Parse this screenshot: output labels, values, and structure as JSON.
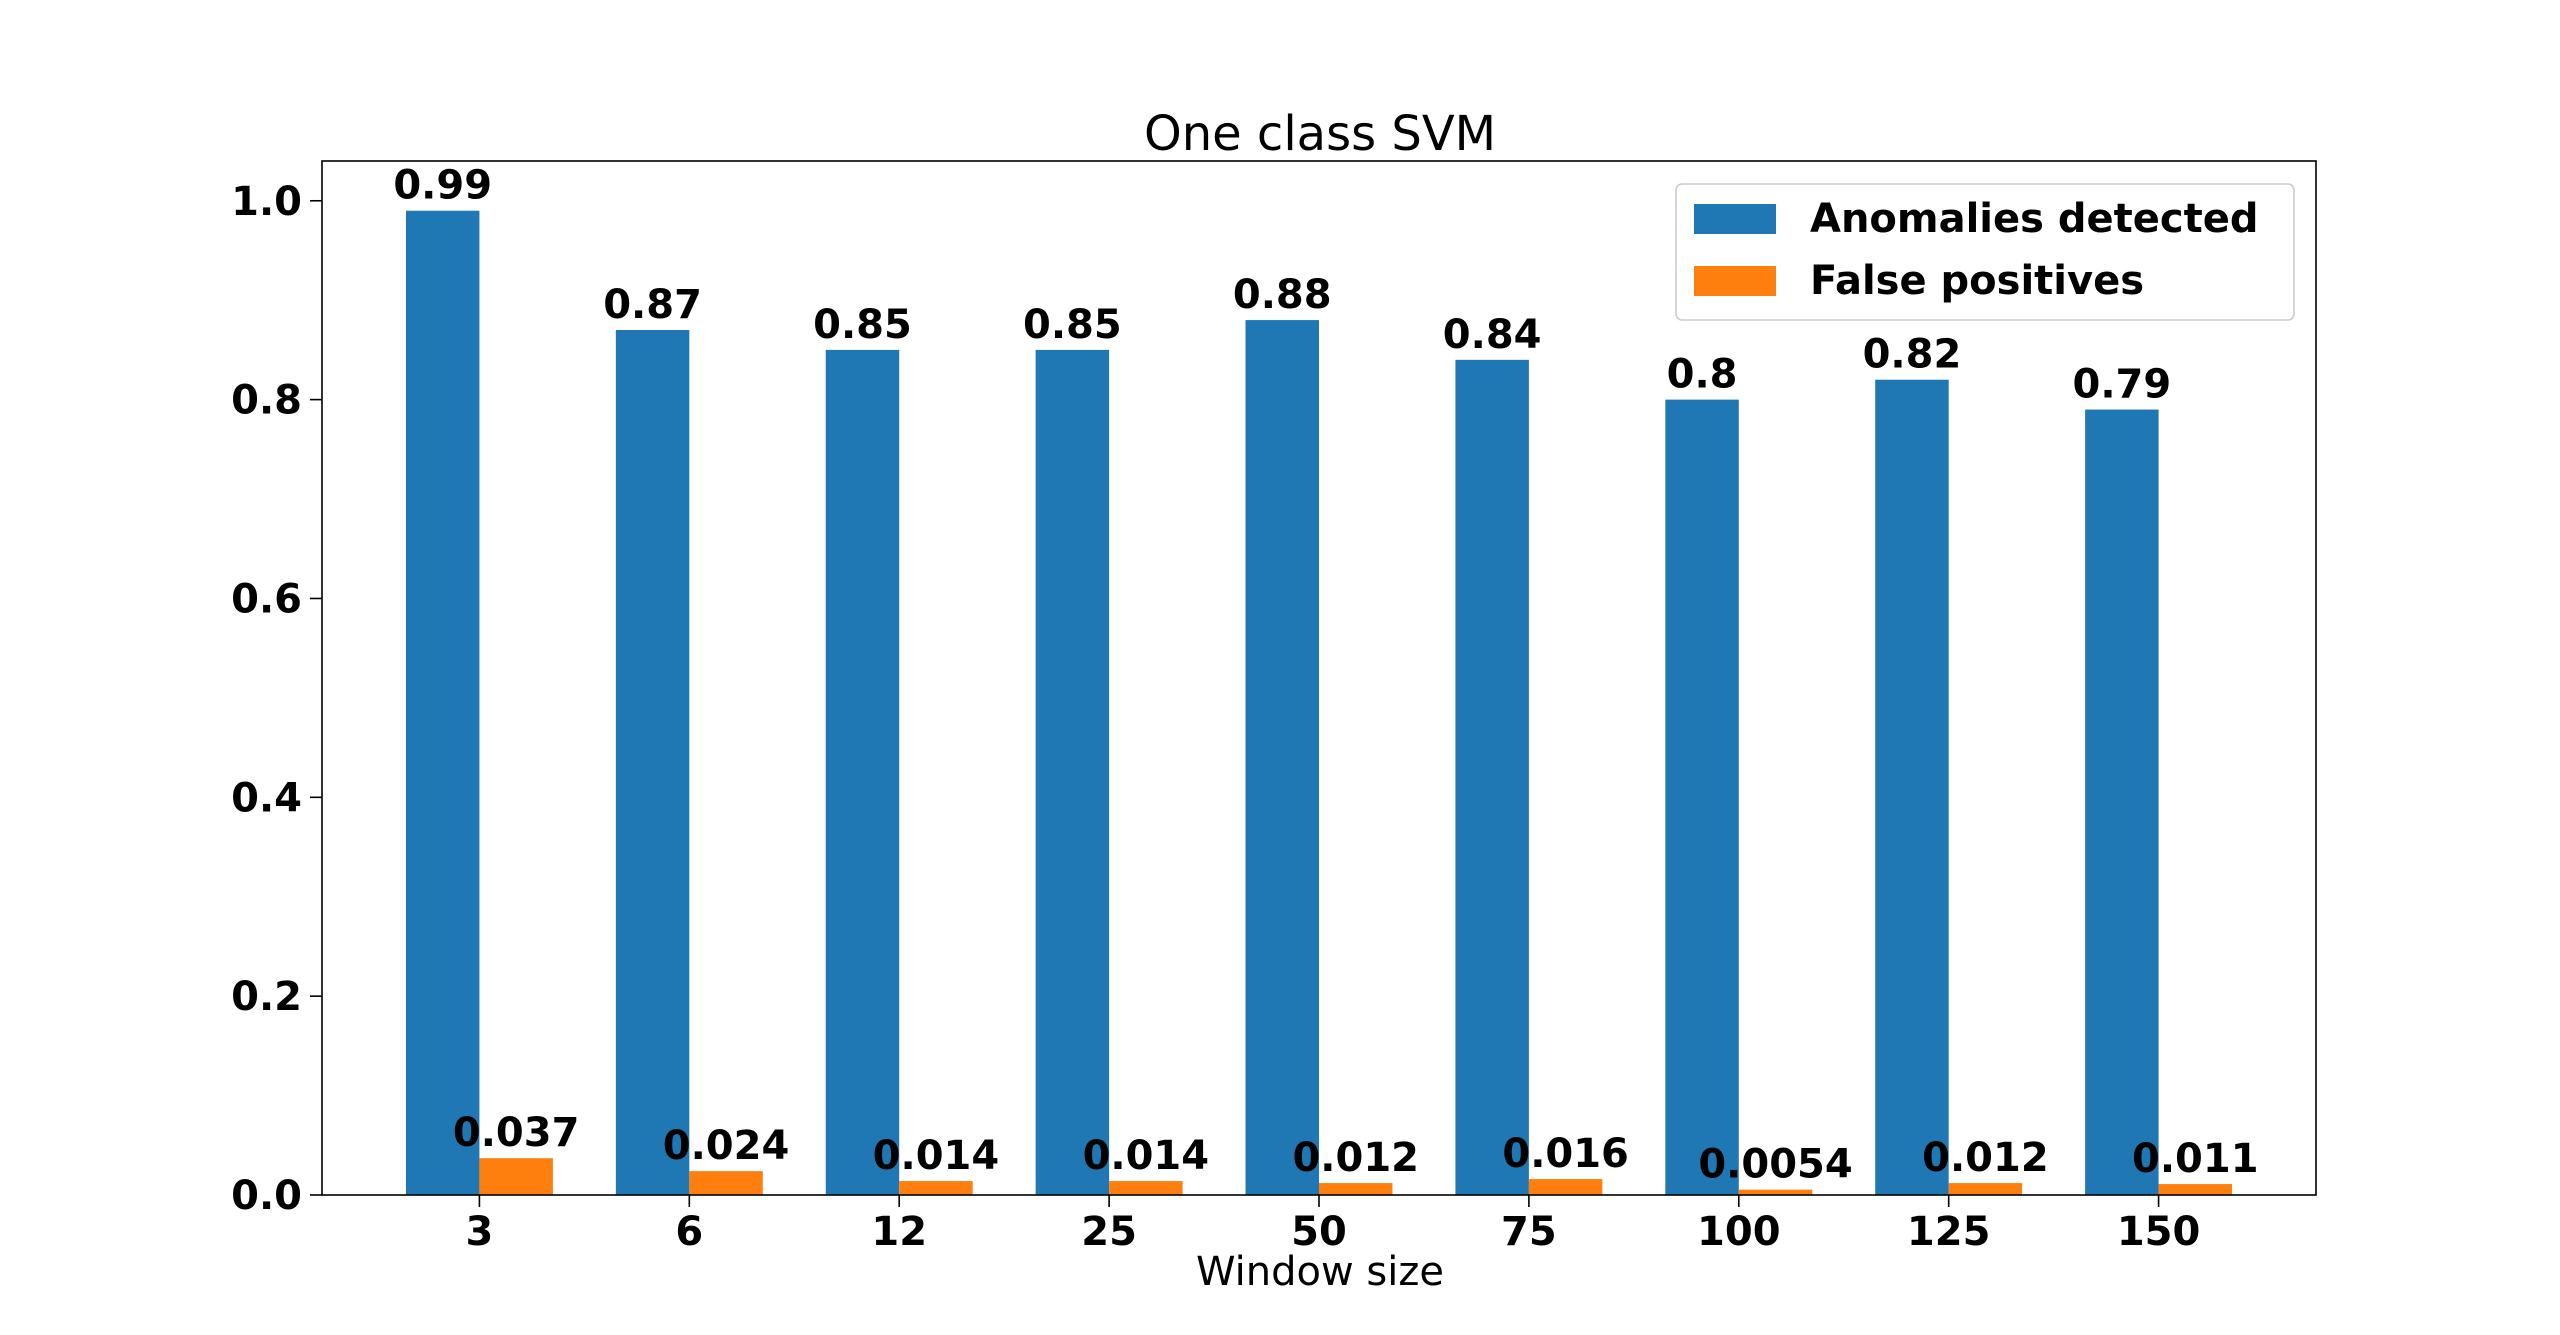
{
  "chart_data": {
    "type": "bar",
    "title": "One class SVM",
    "xlabel": "Window size",
    "ylabel": "",
    "categories": [
      "3",
      "6",
      "12",
      "25",
      "50",
      "75",
      "100",
      "125",
      "150"
    ],
    "ylim": [
      0,
      1.04
    ],
    "yticks": [
      "0.0",
      "0.2",
      "0.4",
      "0.6",
      "0.8",
      "1.0"
    ],
    "grid": false,
    "legend_position": "top-right",
    "series": [
      {
        "name": "Anomalies detected",
        "color": "#1f77b4",
        "values": [
          0.99,
          0.87,
          0.85,
          0.85,
          0.88,
          0.84,
          0.8,
          0.82,
          0.79
        ],
        "labels": [
          "0.99",
          "0.87",
          "0.85",
          "0.85",
          "0.88",
          "0.84",
          "0.8",
          "0.82",
          "0.79"
        ]
      },
      {
        "name": "False positives",
        "color": "#ff7f0e",
        "values": [
          0.037,
          0.024,
          0.014,
          0.014,
          0.012,
          0.016,
          0.0054,
          0.012,
          0.011
        ],
        "labels": [
          "0.037",
          "0.024",
          "0.014",
          "0.014",
          "0.012",
          "0.016",
          "0.0054",
          "0.012",
          "0.011"
        ]
      }
    ]
  }
}
